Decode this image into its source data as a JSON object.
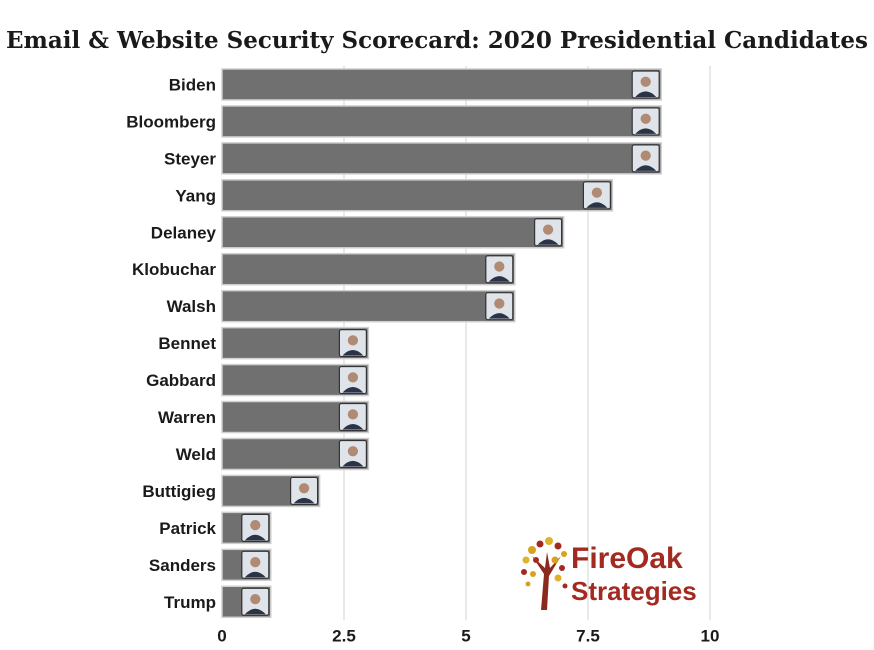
{
  "chart_data": {
    "type": "bar",
    "orientation": "horizontal",
    "title": "Email & Website Security Scorecard: 2020 Presidential Candidates",
    "categories": [
      "Biden",
      "Bloomberg",
      "Steyer",
      "Yang",
      "Delaney",
      "Klobuchar",
      "Walsh",
      "Bennet",
      "Gabbard",
      "Warren",
      "Weld",
      "Buttigieg",
      "Patrick",
      "Sanders",
      "Trump"
    ],
    "values": [
      9,
      9,
      9,
      8,
      7,
      6,
      6,
      3,
      3,
      3,
      3,
      2,
      1,
      1,
      1
    ],
    "xlim": [
      0,
      10
    ],
    "xticks": [
      0,
      2.5,
      5,
      7.5,
      10
    ],
    "xtick_labels": [
      "0",
      "2.5",
      "5",
      "7.5",
      "10"
    ],
    "grid": "vertical",
    "bar_color": "#707070",
    "bar_outline_color": "#cfcfcf",
    "has_candidate_photo_thumbnails": true
  },
  "logo": {
    "line1": "FireOak",
    "line2": "Strategies",
    "brand_color": "#a32a20",
    "icon": "oak-tree-icon"
  }
}
